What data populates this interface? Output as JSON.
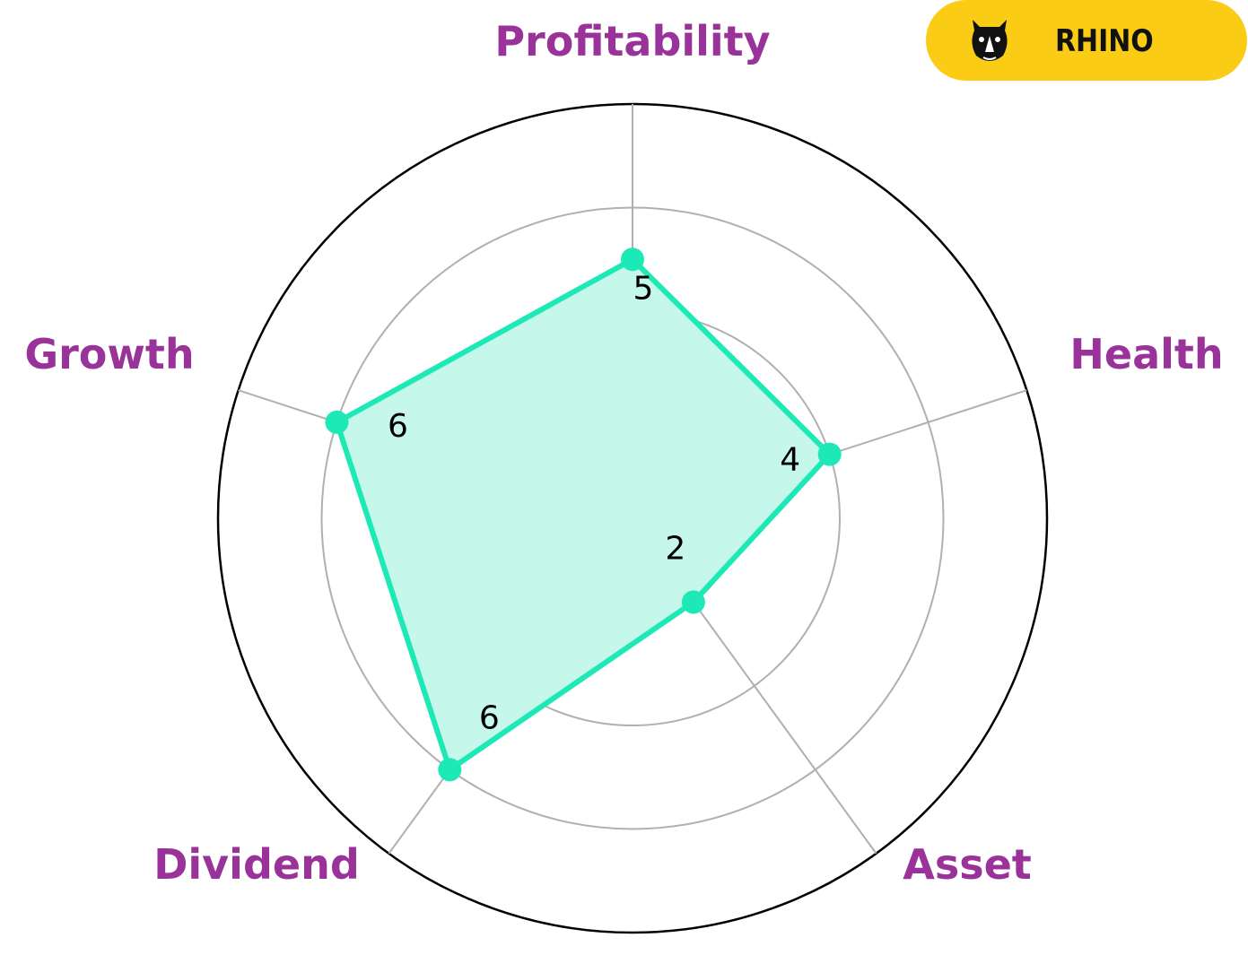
{
  "brand": {
    "name": "RHINO",
    "badge_color": "#FACC15",
    "icon": "rhino-logo-icon"
  },
  "chart_data": {
    "type": "radar",
    "categories": [
      "Profitability",
      "Health",
      "Asset",
      "Dividend",
      "Growth"
    ],
    "values": [
      5,
      4,
      2,
      6,
      6
    ],
    "value_labels": [
      "5",
      "4",
      "2",
      "6",
      "6"
    ],
    "rmax": 8,
    "rings": [
      2,
      4,
      6,
      8
    ],
    "grid": true,
    "colors": {
      "series": "#1DE9B6",
      "fill": "#C5F7EA",
      "labels": "#993399",
      "grid": "#B0B0B0",
      "outer_ring": "#000000"
    }
  }
}
